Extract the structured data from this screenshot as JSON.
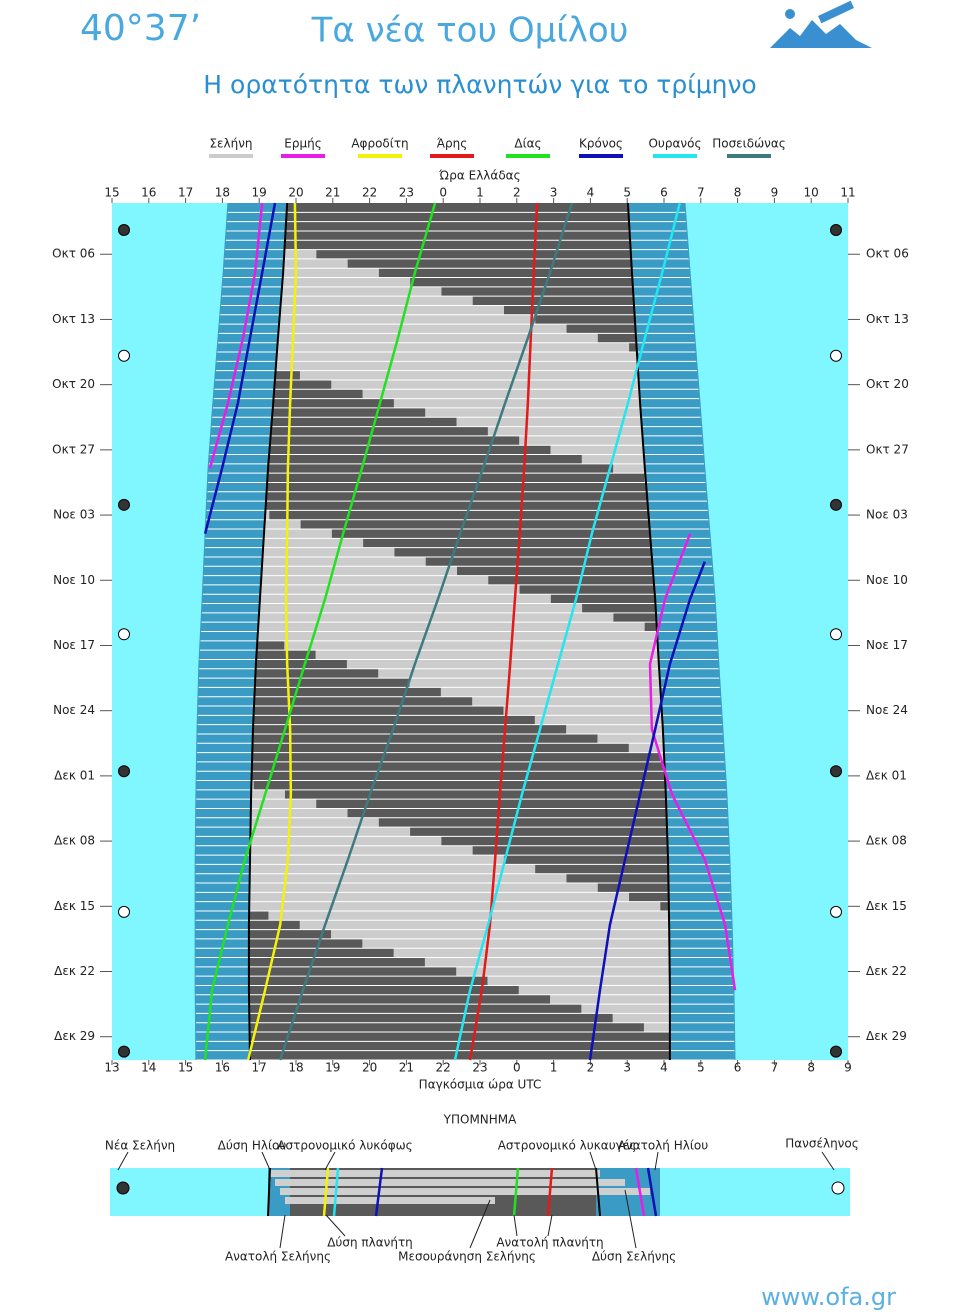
{
  "header": {
    "brand": "40°37’",
    "section": "Τα νέα του Ομίλου"
  },
  "chart_data": {
    "type": "line",
    "title": "Η ορατότητα των πλανητών για το τρίμηνο",
    "x2_label": "Ώρα Ελλάδας",
    "x_label": "Παγκόσμια ώρα UTC",
    "xlim": [
      13,
      33
    ],
    "xticks": [
      13,
      14,
      15,
      16,
      17,
      18,
      19,
      20,
      21,
      22,
      23,
      {
        "value": 24,
        "label": "0"
      },
      {
        "value": 25,
        "label": "1"
      },
      {
        "value": 26,
        "label": "2"
      },
      {
        "value": 27,
        "label": "3"
      },
      {
        "value": 28,
        "label": "4"
      },
      {
        "value": 29,
        "label": "5"
      },
      {
        "value": 30,
        "label": "6"
      },
      {
        "value": 31,
        "label": "7"
      },
      {
        "value": 32,
        "label": "8"
      },
      {
        "value": 33,
        "label": "9"
      }
    ],
    "x2lim": [
      15,
      35
    ],
    "x2ticks": [
      15,
      16,
      17,
      18,
      19,
      20,
      21,
      22,
      23,
      {
        "value": 24,
        "label": "0"
      },
      {
        "value": 25,
        "label": "1"
      },
      {
        "value": 26,
        "label": "2"
      },
      {
        "value": 27,
        "label": "3"
      },
      {
        "value": 28,
        "label": "4"
      },
      {
        "value": 29,
        "label": "5"
      },
      {
        "value": 30,
        "label": "6"
      },
      {
        "value": 31,
        "label": "7"
      },
      {
        "value": 32,
        "label": "8"
      },
      {
        "value": 33,
        "label": "9"
      },
      {
        "value": 34,
        "label": "10"
      },
      {
        "value": 35,
        "label": "11"
      }
    ],
    "ylim": [
      -0.5,
      91.5
    ],
    "yticks": [
      {
        "value": 5,
        "label": "Οκτ 06"
      },
      {
        "value": 12,
        "label": "Οκτ 13"
      },
      {
        "value": 19,
        "label": "Οκτ 20"
      },
      {
        "value": 26,
        "label": "Οκτ 27"
      },
      {
        "value": 33,
        "label": "Νοε 03"
      },
      {
        "value": 40,
        "label": "Νοε 10"
      },
      {
        "value": 47,
        "label": "Νοε 17"
      },
      {
        "value": 54,
        "label": "Νοε 24"
      },
      {
        "value": 61,
        "label": "Δεκ 01"
      },
      {
        "value": 68,
        "label": "Δεκ 08"
      },
      {
        "value": 75,
        "label": "Δεκ 15"
      },
      {
        "value": 82,
        "label": "Δεκ 22"
      },
      {
        "value": 89,
        "label": "Δεκ 29"
      }
    ],
    "sun": {
      "days": [
        -0.5,
        7,
        14,
        21,
        28,
        35,
        42,
        49,
        56,
        63,
        70,
        77,
        84,
        91.5
      ],
      "sunset": [
        16.15,
        16.02,
        15.88,
        15.74,
        15.61,
        15.53,
        15.45,
        15.36,
        15.31,
        15.28,
        15.26,
        15.26,
        15.26,
        15.28
      ],
      "dusk": [
        17.76,
        17.65,
        17.51,
        17.38,
        17.24,
        17.13,
        17.02,
        16.91,
        16.83,
        16.78,
        16.75,
        16.72,
        16.72,
        16.75
      ],
      "dawn": [
        27.02,
        27.13,
        27.24,
        27.35,
        27.48,
        27.62,
        27.76,
        27.86,
        27.97,
        28.05,
        28.11,
        28.14,
        28.16,
        28.16
      ],
      "sunrise": [
        28.57,
        28.71,
        28.84,
        28.98,
        29.11,
        29.25,
        29.39,
        29.49,
        29.6,
        29.71,
        29.79,
        29.85,
        29.9,
        29.93
      ]
    },
    "moon": {
      "name": "Σελήνη",
      "color": "#cccccc",
      "rise_days": [
        -0.5,
        6,
        9,
        12,
        35.5,
        38,
        41.5,
        65,
        68,
        71,
        91.5
      ],
      "rise": [
        27.45,
        33,
        null,
        13,
        33,
        null,
        13,
        33,
        null,
        13,
        30.43
      ],
      "set_days": [
        -0.5,
        22,
        25,
        27.97,
        51.5,
        54,
        57.47,
        81,
        84,
        86.97,
        91.5
      ],
      "set": [
        13.88,
        33,
        null,
        13,
        33,
        null,
        13,
        33,
        null,
        13,
        16.85
      ]
    },
    "moon_phases": {
      "new": [
        2.4,
        31.9,
        60.5,
        90.6
      ],
      "full": [
        15.9,
        45.8,
        75.6
      ]
    },
    "series": [
      {
        "name": "Ερμής",
        "color": "#e81ee8",
        "days": [
          -0.5,
          7,
          14,
          21,
          28,
          30,
          35,
          42,
          49,
          56,
          63,
          70,
          77,
          84
        ],
        "values": [
          17.08,
          16.89,
          16.56,
          16.15,
          15.66,
          null,
          28.71,
          28.03,
          27.62,
          27.67,
          28.22,
          29.11,
          29.66,
          29.93
        ]
      },
      {
        "name": "Αφροδίτη",
        "color": "#f2f20a",
        "days": [
          -0.5,
          7,
          14,
          21,
          28,
          35,
          42,
          49,
          56,
          63,
          70,
          77,
          84,
          91.5
        ],
        "values": [
          17.97,
          18.0,
          17.92,
          17.84,
          17.78,
          17.76,
          17.73,
          17.76,
          17.84,
          17.86,
          17.78,
          17.57,
          17.16,
          16.7
        ]
      },
      {
        "name": "Άρης",
        "color": "#e41a1a",
        "days": [
          -0.5,
          7,
          14,
          21,
          28,
          35,
          42,
          49,
          56,
          63,
          70,
          77,
          84,
          91.5
        ],
        "values": [
          24.55,
          24.46,
          24.38,
          24.3,
          24.2,
          24.08,
          23.95,
          23.82,
          23.68,
          23.54,
          23.41,
          23.27,
          23.05,
          22.73
        ]
      },
      {
        "name": "Δίας",
        "color": "#22e022",
        "days": [
          -0.5,
          7,
          14,
          21,
          28,
          35,
          42,
          49,
          56,
          63,
          70,
          77,
          84,
          91.5
        ],
        "values": [
          21.78,
          21.23,
          20.77,
          20.28,
          19.79,
          19.28,
          18.79,
          18.24,
          17.7,
          17.16,
          16.61,
          16.15,
          15.72,
          15.53
        ]
      },
      {
        "name": "Κρόνος",
        "color": "#1010b8",
        "days": [
          -0.5,
          7,
          14,
          21,
          28,
          35,
          36,
          38,
          42,
          49,
          56,
          63,
          70,
          77,
          84,
          91.5
        ],
        "values": [
          17.43,
          17.08,
          16.75,
          16.42,
          15.99,
          15.53,
          null,
          29.11,
          28.71,
          28.16,
          27.76,
          27.35,
          26.94,
          26.53,
          26.26,
          25.99
        ]
      },
      {
        "name": "Ουρανός",
        "color": "#22e6f2",
        "days": [
          -0.5,
          7,
          14,
          21,
          28,
          35,
          42,
          49,
          56,
          63,
          70,
          77,
          84,
          91.5
        ],
        "values": [
          28.43,
          27.95,
          27.48,
          27.02,
          26.53,
          26.04,
          25.61,
          25.12,
          24.63,
          24.14,
          23.68,
          23.22,
          22.73,
          22.32
        ]
      },
      {
        "name": "Ποσειδώνας",
        "color": "#3d7b80",
        "days": [
          -0.5,
          7,
          14,
          21,
          28,
          35,
          42,
          49,
          56,
          63,
          70,
          77,
          84,
          91.5
        ],
        "values": [
          25.5,
          24.9,
          24.3,
          23.68,
          23.08,
          22.46,
          21.86,
          21.23,
          20.64,
          20.01,
          19.41,
          18.79,
          18.19,
          17.57
        ]
      }
    ]
  },
  "legend_key": {
    "title": "ΥΠΟΜΝΗΜΑ",
    "new_moon": "Νέα Σελήνη",
    "sunset": "Δύση Ηλίου",
    "dusk": "Αστρονομικό λυκόφως",
    "dawn": "Αστρονομικό λυκαυγές",
    "sunrise": "Ανατολή Ηλίου",
    "full_moon": "Πανσέληνος",
    "moonrise": "Ανατολή Σελήνης",
    "planet_set": "Δύση πλανήτη",
    "moon_transit": "Μεσουράνηση Σελήνης",
    "planet_rise": "Ανατολή πλανήτη",
    "moonset": "Δύση Σελήνης"
  },
  "footer": {
    "url": "www.ofa.gr"
  }
}
